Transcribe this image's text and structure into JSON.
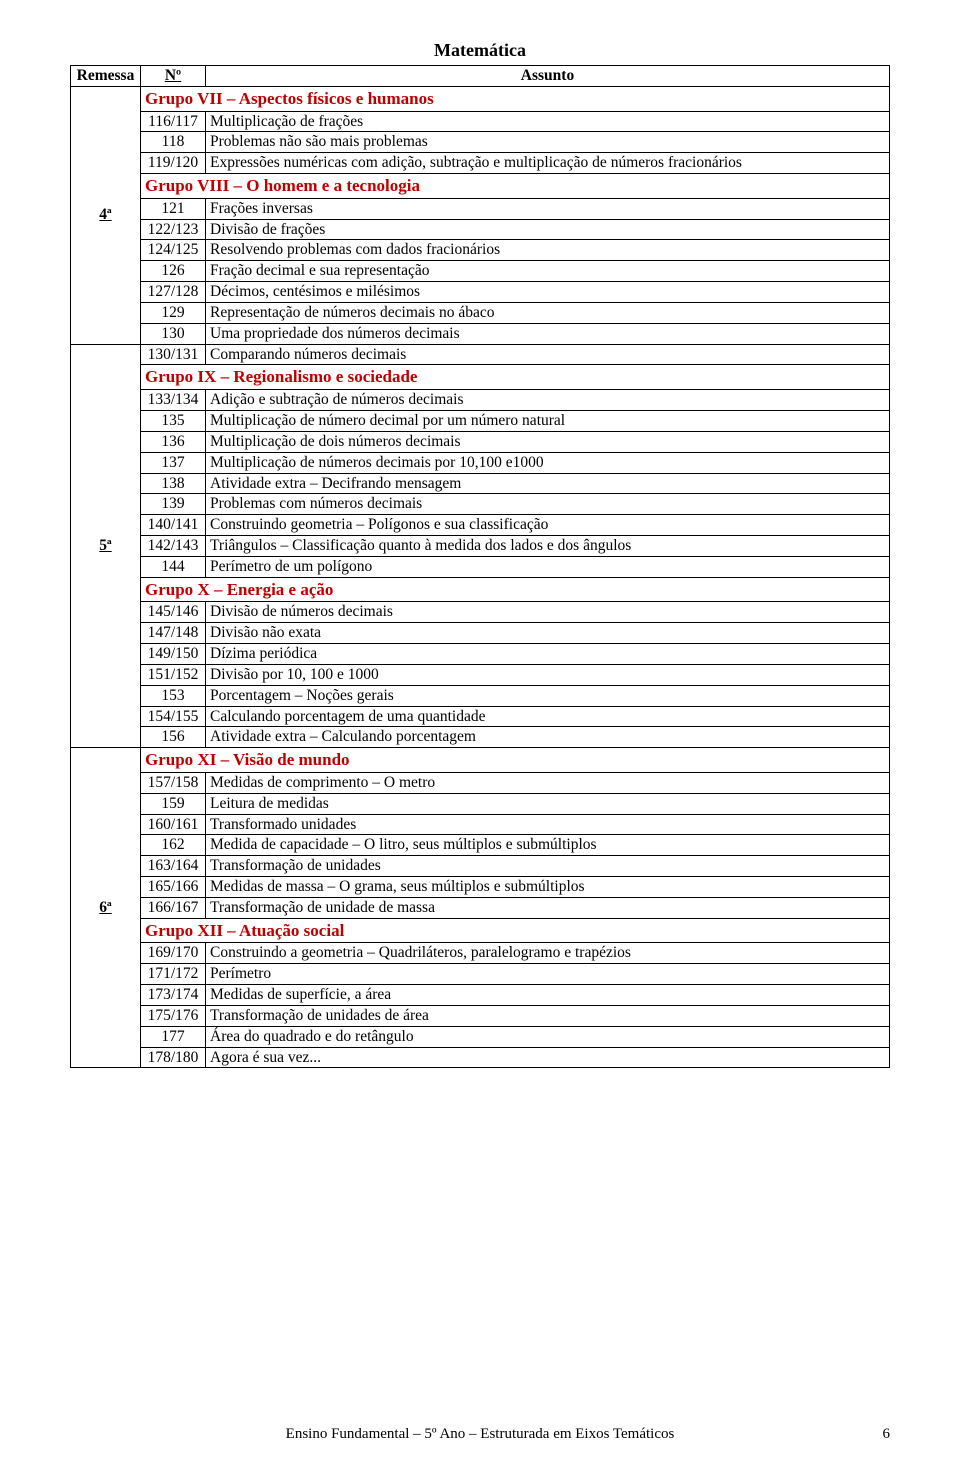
{
  "title": "Matemática",
  "headers": {
    "remessa": "Remessa",
    "no": "Nº",
    "assunto": "Assunto"
  },
  "groups": {
    "g7": "Grupo VII – Aspectos físicos e humanos",
    "g8": "Grupo VIII – O homem e a tecnologia",
    "g9": "Grupo IX – Regionalismo e sociedade",
    "g10": "Grupo X – Energia e ação",
    "g11": "Grupo XI – Visão de mundo",
    "g12": "Grupo XII – Atuação social"
  },
  "remessas": {
    "r4": "4ª",
    "r5": "5ª",
    "r6": "6ª"
  },
  "rows": {
    "n116": "116/117",
    "a116": "Multiplicação de frações",
    "n118": "118",
    "a118": "Problemas não são mais problemas",
    "n119": "119/120",
    "a119": "Expressões numéricas com adição, subtração e multiplicação de números fracionários",
    "n121": "121",
    "a121": "Frações inversas",
    "n122": "122/123",
    "a122": "Divisão de frações",
    "n124": "124/125",
    "a124": "Resolvendo problemas com dados fracionários",
    "n126": "126",
    "a126": "Fração decimal e sua representação",
    "n127": "127/128",
    "a127": "Décimos, centésimos e milésimos",
    "n129": "129",
    "a129": "Representação de números decimais no ábaco",
    "n130": "130",
    "a130": "Uma propriedade dos números decimais",
    "n131": "130/131",
    "a131": "Comparando números decimais",
    "n133": "133/134",
    "a133": "Adição e subtração de números decimais",
    "n135": "135",
    "a135": "Multiplicação de número decimal por um número natural",
    "n136": "136",
    "a136": "Multiplicação de dois números decimais",
    "n137": "137",
    "a137": "Multiplicação de números decimais por 10,100 e1000",
    "n138": "138",
    "a138": "Atividade extra – Decifrando mensagem",
    "n139": "139",
    "a139": "Problemas com números decimais",
    "n140": "140/141",
    "a140": "Construindo geometria – Polígonos e sua classificação",
    "n142": "142/143",
    "a142": "Triângulos – Classificação quanto à medida dos lados e dos ângulos",
    "n144": "144",
    "a144": "Perímetro de um polígono",
    "n145": "145/146",
    "a145": "Divisão de números decimais",
    "n147": "147/148",
    "a147": "Divisão não exata",
    "n149": "149/150",
    "a149": "Dízima periódica",
    "n151": "151/152",
    "a151": "Divisão por 10, 100 e 1000",
    "n153": "153",
    "a153": "Porcentagem – Noções gerais",
    "n154": "154/155",
    "a154": "Calculando porcentagem de uma quantidade",
    "n156": "156",
    "a156": "Atividade extra – Calculando porcentagem",
    "n157": "157/158",
    "a157": "Medidas de comprimento – O metro",
    "n159": "159",
    "a159": "Leitura de medidas",
    "n160": "160/161",
    "a160": "Transformado unidades",
    "n162": "162",
    "a162": "Medida de capacidade – O litro, seus múltiplos e submúltiplos",
    "n163": "163/164",
    "a163": "Transformação de unidades",
    "n165": "165/166",
    "a165": "Medidas de massa – O grama, seus múltiplos e submúltiplos",
    "n166": "166/167",
    "a166": "Transformação de unidade de massa",
    "n169": "169/170",
    "a169": "Construindo a geometria – Quadriláteros, paralelogramo e trapézios",
    "n171": "171/172",
    "a171": "Perímetro",
    "n173": "173/174",
    "a173": "Medidas de superfície, a área",
    "n175": "175/176",
    "a175": "Transformação de unidades de área",
    "n177": "177",
    "a177": "Área do quadrado e do retângulo",
    "n178": "178/180",
    "a178": "Agora é sua vez..."
  },
  "footer": "Ensino Fundamental – 5º Ano – Estruturada em Eixos Temáticos",
  "pagenum": "6",
  "colors": {
    "group": "#c00000",
    "text": "#000000"
  }
}
